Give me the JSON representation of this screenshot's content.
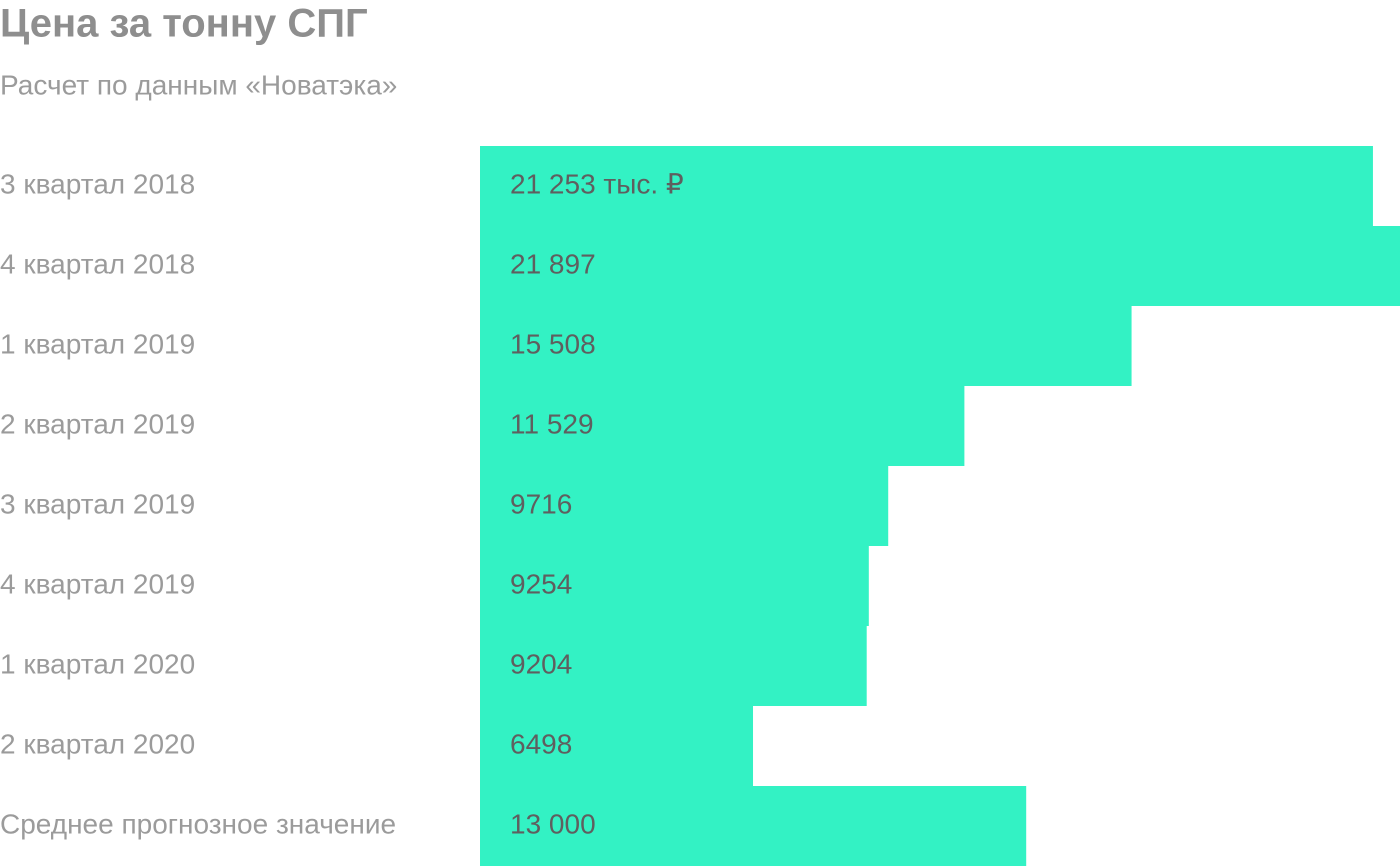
{
  "chart_data": {
    "type": "bar",
    "orientation": "horizontal",
    "title": "Цена за тонну СПГ",
    "subtitle": "Расчет по данным «Новатэка»",
    "categories": [
      "3 квартал 2018",
      "4 квартал 2018",
      "1 квартал 2019",
      "2 квартал 2019",
      "3 квартал 2019",
      "4 квартал 2019",
      "1 квартал 2020",
      "2 квартал 2020",
      "Среднее прогнозное значение"
    ],
    "values": [
      21253,
      21897,
      15508,
      11529,
      9716,
      9254,
      9204,
      6498,
      13000
    ],
    "value_labels": [
      "21 253 тыс. ₽",
      "21 897",
      "15 508",
      "11 529",
      "9716",
      "9254",
      "9204",
      "6498",
      "13 000"
    ],
    "color": "#33f2c4",
    "xlim": [
      0,
      21897
    ]
  }
}
